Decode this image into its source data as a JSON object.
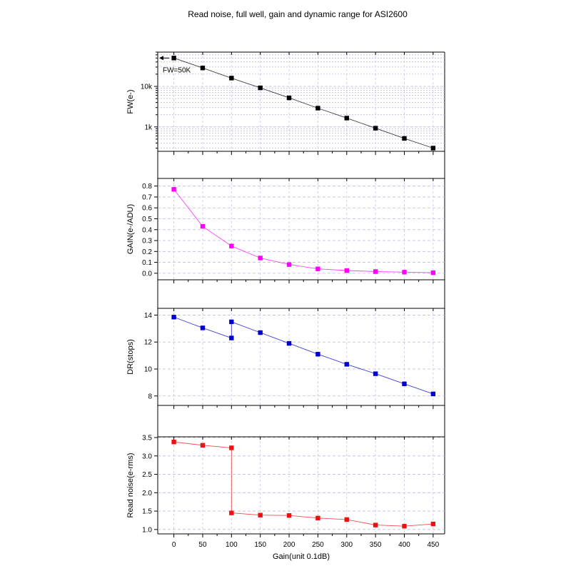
{
  "title": "Read noise, full well, gain and dynamic range for ASI2600",
  "chart_data": {
    "type": "line",
    "title": "Read noise, full well, gain and dynamic range for ASI2600",
    "xlabel": "Gain(unit 0.1dB)",
    "xlim": [
      -28,
      470
    ],
    "x_ticks": [
      0,
      50,
      100,
      150,
      200,
      250,
      300,
      350,
      400,
      450
    ],
    "x_tick_labels": [
      "0",
      "50",
      "100",
      "150",
      "200",
      "250",
      "300",
      "350",
      "400",
      "450"
    ],
    "grid": true,
    "panels": [
      {
        "id": "fw",
        "ylabel": "FW(e-)",
        "scale": "log",
        "ylim": [
          250,
          70000
        ],
        "y_ticks": [
          1000,
          10000
        ],
        "y_tick_labels": [
          "1k",
          "10k"
        ],
        "annotation": "FW=50K",
        "annotation_value": 50000,
        "series": [
          {
            "color": "#000000",
            "x": [
              0,
              50,
              100,
              150,
              200,
              250,
              300,
              350,
              400,
              450
            ],
            "y": [
              50000,
              28500,
              16000,
              9200,
              5200,
              2900,
              1650,
              930,
              520,
              300
            ]
          }
        ]
      },
      {
        "id": "gain",
        "ylabel": "GAIN(e-/ADU)",
        "scale": "linear",
        "ylim": [
          -0.06,
          0.87
        ],
        "y_ticks": [
          0.0,
          0.1,
          0.2,
          0.3,
          0.4,
          0.5,
          0.6,
          0.7,
          0.8
        ],
        "y_tick_labels": [
          "0.0",
          "0.1",
          "0.2",
          "0.3",
          "0.4",
          "0.5",
          "0.6",
          "0.7",
          "0.8"
        ],
        "series": [
          {
            "color": "#ff00ff",
            "x": [
              0,
              50,
              100,
              150,
              200,
              250,
              300,
              350,
              400,
              450
            ],
            "y": [
              0.77,
              0.43,
              0.25,
              0.14,
              0.08,
              0.04,
              0.025,
              0.015,
              0.01,
              0.005
            ]
          }
        ]
      },
      {
        "id": "dr",
        "ylabel": "DR(stops)",
        "scale": "linear",
        "ylim": [
          7.3,
          14.5
        ],
        "y_ticks": [
          8,
          10,
          12,
          14
        ],
        "y_tick_labels": [
          "8",
          "10",
          "12",
          "14"
        ],
        "series": [
          {
            "color": "#0000cc",
            "x": [
              0,
              50,
              100,
              100,
              150,
              200,
              250,
              300,
              350,
              400,
              450
            ],
            "y": [
              13.85,
              13.05,
              12.3,
              13.5,
              12.7,
              11.9,
              11.1,
              10.35,
              9.65,
              8.9,
              8.15
            ]
          }
        ]
      },
      {
        "id": "rn",
        "ylabel": "Read noise(e-rms)",
        "scale": "linear",
        "ylim": [
          0.88,
          3.52
        ],
        "y_ticks": [
          1.0,
          1.5,
          2.0,
          2.5,
          3.0,
          3.5
        ],
        "y_tick_labels": [
          "1.0",
          "1.5",
          "2.0",
          "2.5",
          "3.0",
          "3.5"
        ],
        "series": [
          {
            "color": "#ee1111",
            "x": [
              0,
              50,
              100,
              100,
              150,
              200,
              250,
              300,
              350,
              400,
              450
            ],
            "y": [
              3.38,
              3.29,
              3.22,
              1.45,
              1.39,
              1.38,
              1.31,
              1.27,
              1.12,
              1.09,
              1.15
            ]
          }
        ]
      }
    ]
  }
}
